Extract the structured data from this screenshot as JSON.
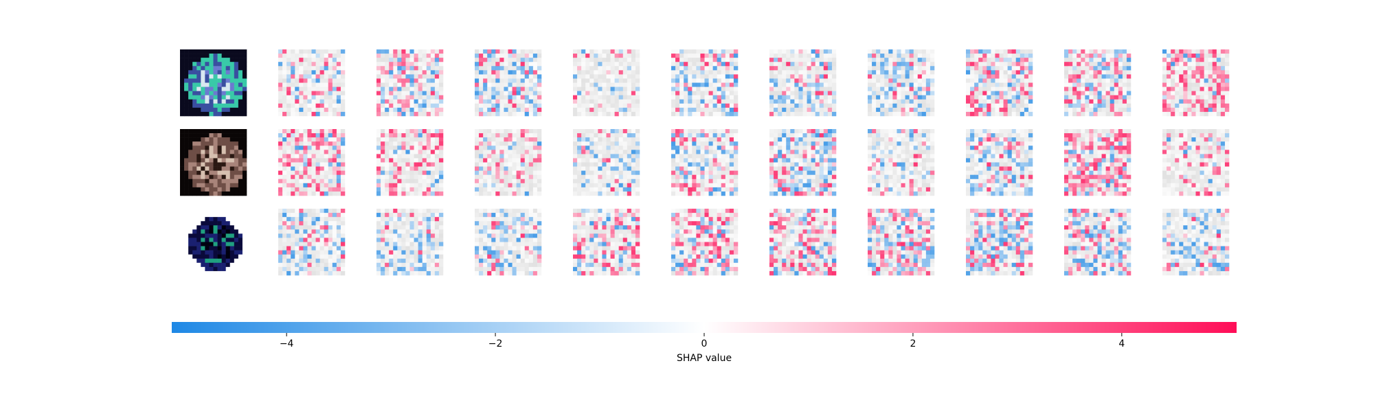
{
  "chart_data": {
    "type": "heatmap",
    "title": "",
    "rows": [
      {
        "input": "robot / machine on table (teal, dark background)",
        "input_colors": [
          "#0a0a1e",
          "#3a4fa0",
          "#39c9a8",
          "#d8e8f0",
          "#6c7ad0"
        ],
        "panels": [
          {
            "pos": 0.25,
            "neg": 0.3
          },
          {
            "pos": 0.55,
            "neg": 0.35
          },
          {
            "pos": 0.2,
            "neg": 0.55
          },
          {
            "pos": 0.15,
            "neg": 0.15
          },
          {
            "pos": 0.25,
            "neg": 0.45
          },
          {
            "pos": 0.25,
            "neg": 0.45
          },
          {
            "pos": 0.15,
            "neg": 0.55
          },
          {
            "pos": 0.45,
            "neg": 0.4
          },
          {
            "pos": 0.55,
            "neg": 0.4
          },
          {
            "pos": 0.8,
            "neg": 0.15
          }
        ]
      },
      {
        "input": "brown object on black background",
        "input_colors": [
          "#0a0606",
          "#6e4e46",
          "#a8847a",
          "#2a1812",
          "#d6c0b0"
        ],
        "panels": [
          {
            "pos": 0.65,
            "neg": 0.15
          },
          {
            "pos": 0.45,
            "neg": 0.15
          },
          {
            "pos": 0.35,
            "neg": 0.15
          },
          {
            "pos": 0.15,
            "neg": 0.35
          },
          {
            "pos": 0.4,
            "neg": 0.3
          },
          {
            "pos": 0.3,
            "neg": 0.65
          },
          {
            "pos": 0.2,
            "neg": 0.25
          },
          {
            "pos": 0.25,
            "neg": 0.6
          },
          {
            "pos": 0.8,
            "neg": 0.2
          },
          {
            "pos": 0.4,
            "neg": 0.15
          }
        ]
      },
      {
        "input": "dark blue cat on white background",
        "input_colors": [
          "#ffffff",
          "#0a0a3a",
          "#1a2070",
          "#20a080",
          "#000010"
        ],
        "panels": [
          {
            "pos": 0.2,
            "neg": 0.45
          },
          {
            "pos": 0.1,
            "neg": 0.45
          },
          {
            "pos": 0.15,
            "neg": 0.45
          },
          {
            "pos": 0.55,
            "neg": 0.3
          },
          {
            "pos": 0.6,
            "neg": 0.3
          },
          {
            "pos": 0.55,
            "neg": 0.4
          },
          {
            "pos": 0.6,
            "neg": 0.55
          },
          {
            "pos": 0.45,
            "neg": 0.6
          },
          {
            "pos": 0.4,
            "neg": 0.5
          },
          {
            "pos": 0.2,
            "neg": 0.4
          }
        ]
      }
    ],
    "colorbar": {
      "label": "SHAP value",
      "range": [
        -5.1,
        5.1
      ],
      "ticks": [
        -4,
        -2,
        0,
        2,
        4
      ],
      "tick_labels": [
        "−4",
        "−2",
        "0",
        "2",
        "4"
      ],
      "neg_color": "#1e88e5",
      "mid_color": "#ffffff",
      "pos_color": "#ff0d57"
    }
  }
}
